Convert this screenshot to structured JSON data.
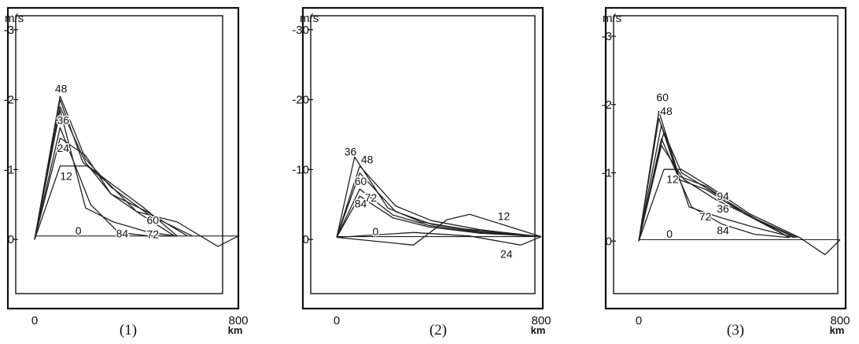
{
  "chart_data": [
    {
      "type": "line",
      "caption": "(1)",
      "y_unit_label": "m/s",
      "x_unit_label": "km",
      "ylim": [
        -1,
        3.2
      ],
      "xlim": [
        0,
        800
      ],
      "y_ticks": [
        {
          "v": 3,
          "label": "-3"
        },
        {
          "v": 2,
          "label": "-2"
        },
        {
          "v": 1,
          "label": "-1"
        },
        {
          "v": 0,
          "label": "0"
        }
      ],
      "x_ticks": [
        {
          "v": 0,
          "label": "0"
        },
        {
          "v": 800,
          "label": "800"
        }
      ],
      "series": [
        {
          "name": "0",
          "x": [
            0,
            800
          ],
          "y": [
            0.05,
            0.05
          ]
        },
        {
          "name": "12",
          "x": [
            0,
            100,
            210,
            300,
            430,
            560
          ],
          "y": [
            0,
            1.05,
            1.05,
            0.8,
            0.45,
            0.05
          ]
        },
        {
          "name": "24",
          "x": [
            0,
            100,
            200,
            300,
            420,
            550
          ],
          "y": [
            0,
            1.45,
            1.2,
            0.65,
            0.35,
            0.05
          ]
        },
        {
          "name": "36",
          "x": [
            0,
            100,
            200,
            300,
            440,
            600
          ],
          "y": [
            0,
            1.9,
            1.1,
            0.65,
            0.4,
            0.05
          ]
        },
        {
          "name": "48",
          "x": [
            0,
            100,
            200,
            300,
            450,
            620
          ],
          "y": [
            0,
            2.05,
            1.15,
            0.75,
            0.35,
            0.05
          ]
        },
        {
          "name": "60",
          "x": [
            0,
            100,
            190,
            290,
            400,
            560,
            720,
            800
          ],
          "y": [
            0,
            2.0,
            1.1,
            0.8,
            0.4,
            0.25,
            -0.1,
            0.05
          ]
        },
        {
          "name": "72",
          "x": [
            0,
            100,
            200,
            310,
            450,
            560
          ],
          "y": [
            0,
            1.85,
            0.45,
            0.25,
            0.1,
            0.05
          ]
        },
        {
          "name": "84",
          "x": [
            0,
            100,
            220,
            330,
            450,
            560
          ],
          "y": [
            0,
            1.6,
            0.5,
            0.1,
            0.05,
            0.05
          ]
        }
      ],
      "series_label_positions": [
        {
          "text": "48",
          "x": 80,
          "y": 2.1
        },
        {
          "text": "36",
          "x": 88,
          "y": 1.65
        },
        {
          "text": "24",
          "x": 88,
          "y": 1.25
        },
        {
          "text": "12",
          "x": 100,
          "y": 0.85
        },
        {
          "text": "0",
          "x": 160,
          "y": 0.07
        },
        {
          "text": "84",
          "x": 320,
          "y": 0.03
        },
        {
          "text": "60",
          "x": 440,
          "y": 0.22
        },
        {
          "text": "72",
          "x": 440,
          "y": 0.02
        }
      ]
    },
    {
      "type": "line",
      "caption": "(2)",
      "y_unit_label": "m/s",
      "x_unit_label": "km",
      "ylim": [
        -10,
        32
      ],
      "xlim": [
        0,
        800
      ],
      "y_ticks": [
        {
          "v": 30,
          "label": "-30"
        },
        {
          "v": 20,
          "label": "-20"
        },
        {
          "v": 10,
          "label": "-10"
        },
        {
          "v": 0,
          "label": "0"
        }
      ],
      "x_ticks": [
        {
          "v": 0,
          "label": "0"
        },
        {
          "v": 800,
          "label": "800"
        }
      ],
      "series": [
        {
          "name": "0",
          "x": [
            0,
            800
          ],
          "y": [
            0.4,
            0.4
          ]
        },
        {
          "name": "12",
          "x": [
            0,
            300,
            430,
            520,
            800
          ],
          "y": [
            0.3,
            -0.8,
            2.8,
            3.6,
            0.4
          ]
        },
        {
          "name": "24",
          "x": [
            0,
            300,
            520,
            720,
            800
          ],
          "y": [
            0.3,
            1.0,
            0.5,
            -0.8,
            0.4
          ]
        },
        {
          "name": "36",
          "x": [
            0,
            70,
            200,
            330,
            500,
            800
          ],
          "y": [
            0.3,
            11.8,
            4.5,
            2.5,
            1.5,
            0.4
          ]
        },
        {
          "name": "48",
          "x": [
            0,
            90,
            230,
            370,
            560,
            800
          ],
          "y": [
            0.3,
            10.5,
            4.8,
            2.7,
            1.4,
            0.4
          ]
        },
        {
          "name": "60",
          "x": [
            0,
            90,
            230,
            370,
            560,
            800
          ],
          "y": [
            0.3,
            9.5,
            4.0,
            2.2,
            1.1,
            0.4
          ]
        },
        {
          "name": "72",
          "x": [
            0,
            90,
            220,
            360,
            560,
            800
          ],
          "y": [
            0.3,
            7.2,
            3.5,
            2.0,
            1.0,
            0.4
          ]
        },
        {
          "name": "84",
          "x": [
            0,
            90,
            220,
            360,
            560,
            800
          ],
          "y": [
            0.3,
            6.2,
            3.1,
            1.8,
            0.9,
            0.4
          ]
        }
      ],
      "series_label_positions": [
        {
          "text": "36",
          "x": 30,
          "y": 12.0
        },
        {
          "text": "48",
          "x": 95,
          "y": 10.9
        },
        {
          "text": "60",
          "x": 70,
          "y": 7.8
        },
        {
          "text": "72",
          "x": 110,
          "y": 5.4
        },
        {
          "text": "84",
          "x": 70,
          "y": 4.6
        },
        {
          "text": "0",
          "x": 140,
          "y": 0.6
        },
        {
          "text": "12",
          "x": 630,
          "y": 2.8
        },
        {
          "text": "24",
          "x": 640,
          "y": -2.6
        }
      ]
    },
    {
      "type": "line",
      "caption": "(3)",
      "y_unit_label": "m/s",
      "x_unit_label": "km",
      "ylim": [
        -1,
        3.3
      ],
      "xlim": [
        0,
        800
      ],
      "y_ticks": [
        {
          "v": 3,
          "label": "-3"
        },
        {
          "v": 2,
          "label": "-2"
        },
        {
          "v": 1,
          "label": "-1"
        },
        {
          "v": 0,
          "label": "0"
        }
      ],
      "x_ticks": [
        {
          "v": 0,
          "label": "0"
        },
        {
          "v": 800,
          "label": "800"
        }
      ],
      "series": [
        {
          "name": "0",
          "x": [
            0,
            800
          ],
          "y": [
            0.02,
            0.02
          ]
        },
        {
          "name": "12",
          "x": [
            0,
            100,
            170,
            280,
            440,
            640,
            740,
            800
          ],
          "y": [
            0,
            1.05,
            1.05,
            0.8,
            0.4,
            0.05,
            -0.2,
            0.02
          ]
        },
        {
          "name": "36",
          "x": [
            0,
            100,
            170,
            280,
            430,
            600
          ],
          "y": [
            0,
            1.6,
            1.0,
            0.75,
            0.4,
            0.05
          ]
        },
        {
          "name": "48",
          "x": [
            0,
            80,
            160,
            270,
            420,
            600
          ],
          "y": [
            0,
            1.8,
            0.9,
            0.75,
            0.4,
            0.05
          ]
        },
        {
          "name": "60",
          "x": [
            0,
            80,
            160,
            270,
            420,
            630
          ],
          "y": [
            0,
            1.9,
            0.95,
            0.8,
            0.4,
            0.05
          ]
        },
        {
          "name": "72",
          "x": [
            0,
            90,
            200,
            320,
            460,
            620
          ],
          "y": [
            0,
            1.7,
            0.5,
            0.35,
            0.2,
            0.05
          ]
        },
        {
          "name": "84",
          "x": [
            0,
            90,
            210,
            330,
            460,
            600
          ],
          "y": [
            0,
            1.5,
            0.5,
            0.25,
            0.1,
            0.05
          ]
        },
        {
          "name": "94",
          "x": [
            0,
            90,
            180,
            310,
            450,
            620
          ],
          "y": [
            0,
            1.4,
            0.9,
            0.6,
            0.35,
            0.05
          ]
        }
      ],
      "series_label_positions": [
        {
          "text": "60",
          "x": 70,
          "y": 2.05
        },
        {
          "text": "48",
          "x": 85,
          "y": 1.85
        },
        {
          "text": "12",
          "x": 110,
          "y": 0.85
        },
        {
          "text": "0",
          "x": 110,
          "y": 0.05
        },
        {
          "text": "94",
          "x": 310,
          "y": 0.6
        },
        {
          "text": "36",
          "x": 310,
          "y": 0.42
        },
        {
          "text": "72",
          "x": 240,
          "y": 0.3
        },
        {
          "text": "84",
          "x": 310,
          "y": 0.1
        }
      ]
    }
  ]
}
